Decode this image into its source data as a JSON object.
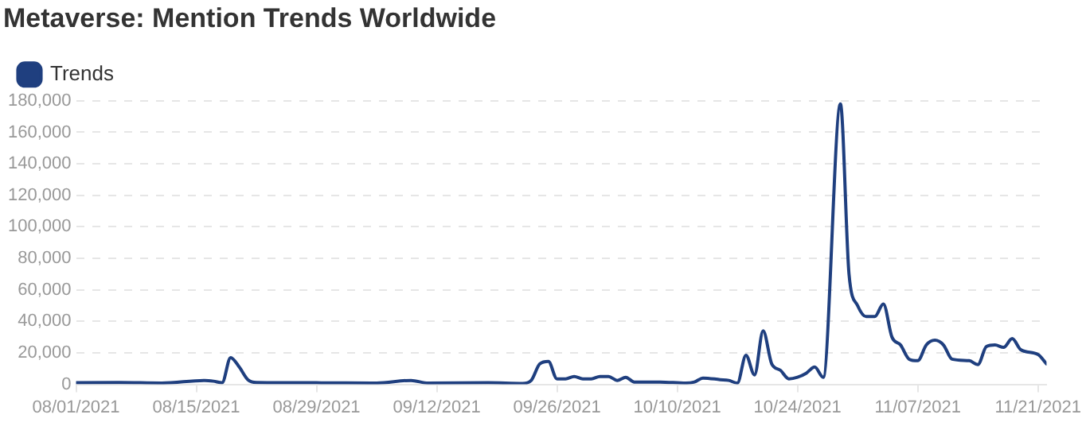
{
  "chart_data": {
    "type": "line",
    "title": "Metaverse: Mention Trends Worldwide",
    "x": [
      "2021-08-01",
      "2021-08-06",
      "2021-08-11",
      "2021-08-16",
      "2021-08-17",
      "2021-08-18",
      "2021-08-19",
      "2021-08-20",
      "2021-08-21",
      "2021-08-22",
      "2021-08-29",
      "2021-09-05",
      "2021-09-09",
      "2021-09-11",
      "2021-09-18",
      "2021-09-22",
      "2021-09-23",
      "2021-09-24",
      "2021-09-25",
      "2021-09-26",
      "2021-09-27",
      "2021-09-28",
      "2021-09-29",
      "2021-09-30",
      "2021-10-01",
      "2021-10-02",
      "2021-10-03",
      "2021-10-04",
      "2021-10-05",
      "2021-10-08",
      "2021-10-11",
      "2021-10-12",
      "2021-10-13",
      "2021-10-15",
      "2021-10-16",
      "2021-10-17",
      "2021-10-18",
      "2021-10-19",
      "2021-10-20",
      "2021-10-21",
      "2021-10-22",
      "2021-10-23",
      "2021-10-24",
      "2021-10-25",
      "2021-10-26",
      "2021-10-27",
      "2021-10-29",
      "2021-10-30",
      "2021-10-31",
      "2021-11-01",
      "2021-11-02",
      "2021-11-03",
      "2021-11-04",
      "2021-11-05",
      "2021-11-06",
      "2021-11-07",
      "2021-11-08",
      "2021-11-09",
      "2021-11-10",
      "2021-11-11",
      "2021-11-13",
      "2021-11-14",
      "2021-11-15",
      "2021-11-16",
      "2021-11-17",
      "2021-11-18",
      "2021-11-19",
      "2021-11-21",
      "2021-11-22"
    ],
    "series": [
      {
        "name": "Trends",
        "color": "#1f3f7f",
        "values": [
          1000,
          1200,
          800,
          2500,
          2000,
          1000,
          17000,
          11000,
          3000,
          1200,
          1000,
          800,
          2500,
          800,
          1000,
          500,
          2500,
          13000,
          14500,
          3500,
          3500,
          5000,
          3500,
          3500,
          5000,
          5000,
          2500,
          4500,
          1500,
          1500,
          800,
          1500,
          4000,
          3000,
          2500,
          800,
          18500,
          6000,
          34000,
          13000,
          9000,
          3500,
          4500,
          7000,
          11000,
          4500,
          178000,
          70000,
          50000,
          43000,
          43000,
          51000,
          30000,
          25000,
          16000,
          15000,
          25000,
          28000,
          25000,
          16000,
          15000,
          12500,
          24000,
          25000,
          23500,
          29000,
          22000,
          19000,
          13000
        ]
      }
    ],
    "xlim": [
      "2021-08-01",
      "2021-11-22"
    ],
    "xticks": [
      {
        "value": "2021-08-01",
        "label": "08/01/2021"
      },
      {
        "value": "2021-08-15",
        "label": "08/15/2021"
      },
      {
        "value": "2021-08-29",
        "label": "08/29/2021"
      },
      {
        "value": "2021-09-12",
        "label": "09/12/2021"
      },
      {
        "value": "2021-09-26",
        "label": "09/26/2021"
      },
      {
        "value": "2021-10-10",
        "label": "10/10/2021"
      },
      {
        "value": "2021-10-24",
        "label": "10/24/2021"
      },
      {
        "value": "2021-11-07",
        "label": "11/07/2021"
      },
      {
        "value": "2021-11-21",
        "label": "11/21/2021"
      }
    ],
    "ylim": [
      0,
      180000
    ],
    "yticks": [
      0,
      {
        "value": 20000,
        "label": "20,000"
      },
      {
        "value": 40000,
        "label": "40,000"
      },
      {
        "value": 60000,
        "label": "60,000"
      },
      {
        "value": 80000,
        "label": "80,000"
      },
      {
        "value": 100000,
        "label": "100,000"
      },
      {
        "value": 120000,
        "label": "120,000"
      },
      {
        "value": 140000,
        "label": "140,000"
      },
      {
        "value": 160000,
        "label": "160,000"
      },
      {
        "value": 180000,
        "label": "180,000"
      }
    ],
    "grid": "y",
    "legend": "top left",
    "marker": "none",
    "line_style": "solid"
  }
}
